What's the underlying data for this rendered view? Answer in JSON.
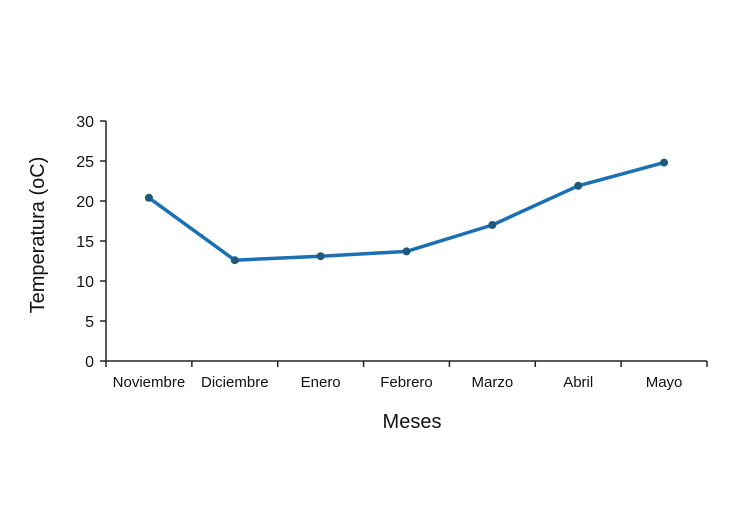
{
  "chart_data": {
    "type": "line",
    "categories": [
      "Noviembre",
      "Diciembre",
      "Enero",
      "Febrero",
      "Marzo",
      "Abril",
      "Mayo"
    ],
    "series": [
      {
        "values": [
          20.4,
          12.6,
          13.1,
          13.7,
          17.0,
          21.9,
          24.8
        ]
      }
    ],
    "title": "",
    "xlabel": "Meses",
    "ylabel": "Temperatura (oC)",
    "ylim": [
      0,
      30
    ],
    "yticks": [
      0,
      5,
      10,
      15,
      20,
      25,
      30
    ],
    "grid": false,
    "legend": "none",
    "line_color": "#1a6fb5",
    "marker_color": "#1f5a7a",
    "axis_color": "#222222"
  }
}
